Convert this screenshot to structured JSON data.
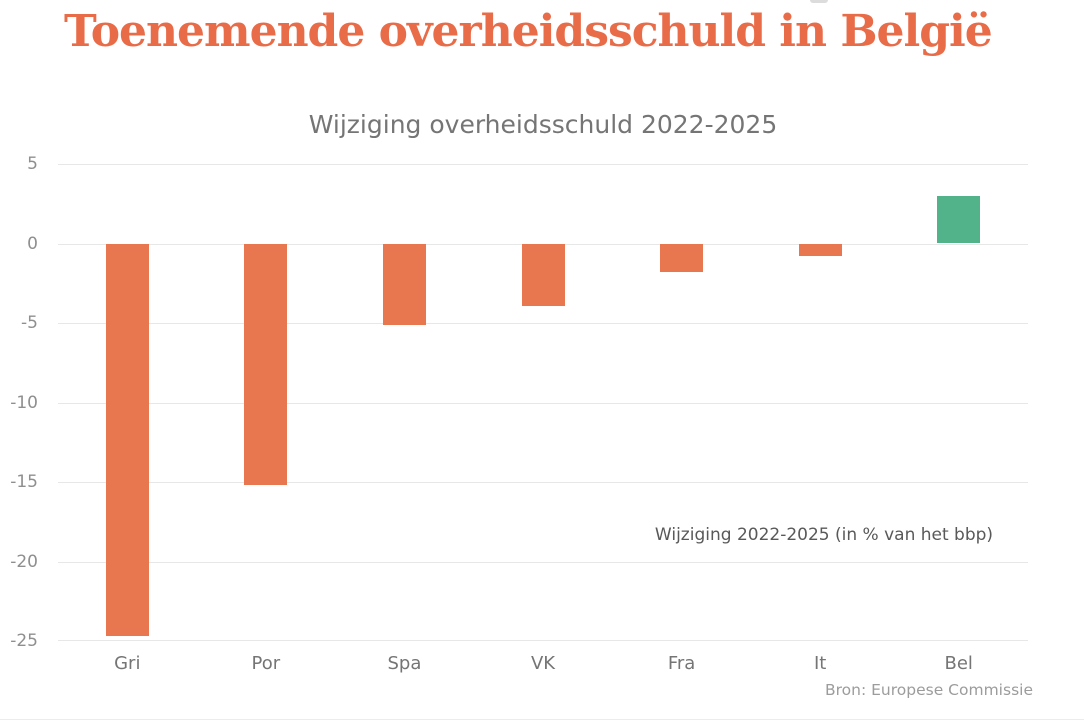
{
  "page": {
    "title": "Toenemende overheidsschuld in België",
    "source": "Bron: Europese Commissie"
  },
  "chart_data": {
    "type": "bar",
    "title": "Wijziging overheidsschuld 2022-2025",
    "annotation": "Wijziging 2022-2025 (in % van het bbp)",
    "categories": [
      "Gri",
      "Por",
      "Spa",
      "VK",
      "Fra",
      "It",
      "Bel"
    ],
    "values": [
      -24.7,
      -15.2,
      -5.1,
      -3.9,
      -1.8,
      -0.8,
      3.0
    ],
    "ylabel": "",
    "xlabel": "",
    "ylim": [
      -25,
      5
    ],
    "yticks": [
      5,
      0,
      -5,
      -10,
      -15,
      -20,
      -25
    ],
    "grid": "horizontal",
    "legend_position": "inside-right",
    "colors": {
      "title": "#E96C49",
      "negative_bar": "#E8764F",
      "positive_bar": "#52B28A",
      "gridline": "#E7E7E7"
    }
  }
}
